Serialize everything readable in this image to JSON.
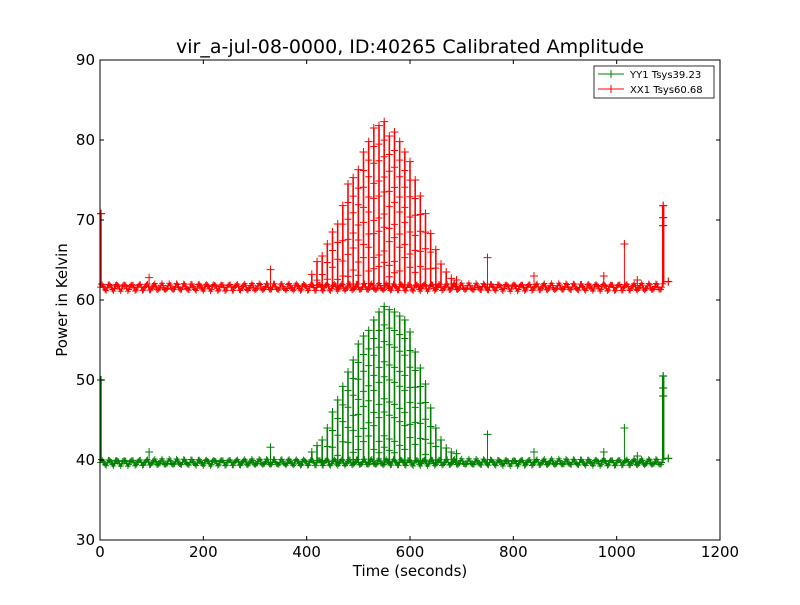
{
  "chart_data": {
    "type": "line",
    "title": "vir_a-jul-08-0000, ID:40265 Calibrated Amplitude",
    "xlabel": "Time (seconds)",
    "ylabel": "Power in Kelvin",
    "xlim": [
      0,
      1200
    ],
    "ylim": [
      30,
      90
    ],
    "xticks": [
      "0",
      "200",
      "400",
      "600",
      "800",
      "1000",
      "1200"
    ],
    "yticks": [
      "30",
      "40",
      "50",
      "60",
      "70",
      "80",
      "90"
    ],
    "grid": false,
    "legend_position": "top-right",
    "marker": "+",
    "series": [
      {
        "name": "YY1 Tsys39.23",
        "color": "#008000",
        "baseline": 39.7,
        "ripple_amplitude": 0.35,
        "start_spike": [
          0,
          50
        ],
        "end_spike": [
          1090,
          50.5
        ],
        "end_value": [
          1100,
          40.2
        ],
        "isolated_spikes": [
          [
            95,
            41
          ],
          [
            330,
            41.6
          ],
          [
            750,
            43.2
          ],
          [
            840,
            41
          ],
          [
            975,
            41
          ],
          [
            1015,
            44
          ],
          [
            1040,
            40.5
          ]
        ],
        "peak_x": [
          410,
          420,
          430,
          440,
          450,
          460,
          470,
          480,
          490,
          500,
          510,
          520,
          530,
          540,
          550,
          560,
          570,
          580,
          590,
          600,
          610,
          620,
          630,
          640,
          650,
          660,
          670,
          680,
          690
        ],
        "peak_y": [
          41,
          41.8,
          42.5,
          44,
          46,
          47.5,
          49.2,
          51,
          52.5,
          54.5,
          55.5,
          56.2,
          57.5,
          58.5,
          59.2,
          58.8,
          58.5,
          58,
          57.5,
          56,
          53.5,
          51.5,
          49.5,
          46.5,
          44,
          42.5,
          41.5,
          41,
          40.8
        ]
      },
      {
        "name": "XX1 Tsys60.68",
        "color": "#ff0000",
        "baseline": 61.6,
        "ripple_amplitude": 0.4,
        "start_spike": [
          0,
          70.8
        ],
        "end_spike": [
          1090,
          71.8
        ],
        "end_value": [
          1100,
          62.3
        ],
        "isolated_spikes": [
          [
            95,
            62.8
          ],
          [
            330,
            63.8
          ],
          [
            750,
            65.3
          ],
          [
            840,
            63
          ],
          [
            975,
            63
          ],
          [
            1015,
            67
          ],
          [
            1040,
            62.5
          ]
        ],
        "peak_x": [
          410,
          420,
          430,
          440,
          450,
          460,
          470,
          480,
          490,
          500,
          510,
          520,
          530,
          540,
          550,
          560,
          570,
          580,
          590,
          600,
          610,
          620,
          630,
          640,
          650,
          660,
          670,
          680,
          690
        ],
        "peak_y": [
          63.2,
          64.8,
          65.5,
          67,
          68.5,
          69.5,
          71.8,
          74.5,
          75.3,
          76.3,
          78.5,
          79.8,
          81.5,
          81.8,
          82.3,
          80.5,
          81,
          79.8,
          78.5,
          77.3,
          75,
          73,
          70.8,
          68.3,
          66.3,
          64.5,
          63.5,
          62.7,
          62.5
        ]
      }
    ]
  }
}
